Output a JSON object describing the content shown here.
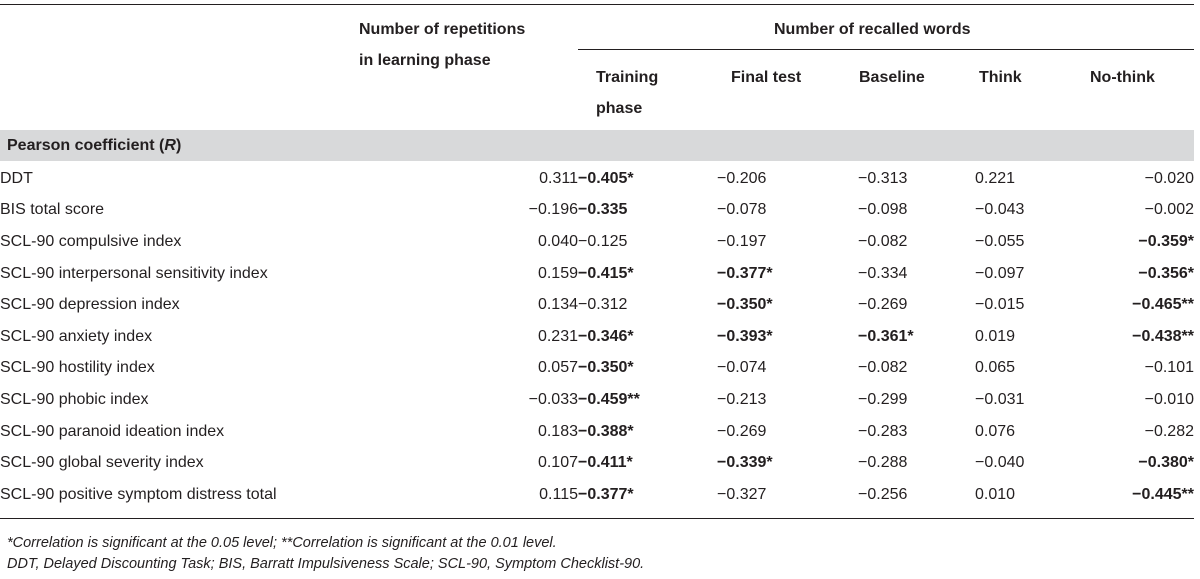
{
  "header": {
    "col_repetitions": [
      "Number of repetitions",
      "in learning phase"
    ],
    "col_recalled_group": "Number of recalled words",
    "subcols": [
      [
        "Training",
        "phase"
      ],
      [
        "Final test"
      ],
      [
        "Baseline"
      ],
      [
        "Think"
      ],
      [
        "No-think"
      ]
    ]
  },
  "section": {
    "label": "Pearson coefficient (",
    "label_italic": "R",
    "label_close": ")"
  },
  "rows": [
    {
      "label": "DDT",
      "cells": [
        {
          "v": "0.311",
          "b": false
        },
        {
          "v": "−0.405*",
          "b": true
        },
        {
          "v": "−0.206",
          "b": false
        },
        {
          "v": "−0.313",
          "b": false
        },
        {
          "v": "0.221",
          "b": false
        },
        {
          "v": "−0.020",
          "b": false
        }
      ]
    },
    {
      "label": "BIS total score",
      "cells": [
        {
          "v": "−0.196",
          "b": false
        },
        {
          "v": "−0.335",
          "b": true
        },
        {
          "v": "−0.078",
          "b": false
        },
        {
          "v": "−0.098",
          "b": false
        },
        {
          "v": "−0.043",
          "b": false
        },
        {
          "v": "−0.002",
          "b": false
        }
      ]
    },
    {
      "label": "SCL-90 compulsive index",
      "cells": [
        {
          "v": "0.040",
          "b": false
        },
        {
          "v": "−0.125",
          "b": false
        },
        {
          "v": "−0.197",
          "b": false
        },
        {
          "v": "−0.082",
          "b": false
        },
        {
          "v": "−0.055",
          "b": false
        },
        {
          "v": "−0.359*",
          "b": true
        }
      ]
    },
    {
      "label": "SCL-90 interpersonal sensitivity index",
      "cells": [
        {
          "v": "0.159",
          "b": false
        },
        {
          "v": "−0.415*",
          "b": true
        },
        {
          "v": "−0.377*",
          "b": true
        },
        {
          "v": "−0.334",
          "b": false
        },
        {
          "v": "−0.097",
          "b": false
        },
        {
          "v": "−0.356*",
          "b": true
        }
      ]
    },
    {
      "label": "SCL-90 depression index",
      "cells": [
        {
          "v": "0.134",
          "b": false
        },
        {
          "v": "−0.312",
          "b": false
        },
        {
          "v": "−0.350*",
          "b": true
        },
        {
          "v": "−0.269",
          "b": false
        },
        {
          "v": "−0.015",
          "b": false
        },
        {
          "v": "−0.465**",
          "b": true
        }
      ]
    },
    {
      "label": "SCL-90 anxiety index",
      "cells": [
        {
          "v": "0.231",
          "b": false
        },
        {
          "v": "−0.346*",
          "b": true
        },
        {
          "v": "−0.393*",
          "b": true
        },
        {
          "v": "−0.361*",
          "b": true
        },
        {
          "v": "0.019",
          "b": false
        },
        {
          "v": "−0.438**",
          "b": true
        }
      ]
    },
    {
      "label": "SCL-90 hostility index",
      "cells": [
        {
          "v": "0.057",
          "b": false
        },
        {
          "v": "−0.350*",
          "b": true
        },
        {
          "v": "−0.074",
          "b": false
        },
        {
          "v": "−0.082",
          "b": false
        },
        {
          "v": "0.065",
          "b": false
        },
        {
          "v": "−0.101",
          "b": false
        }
      ]
    },
    {
      "label": "SCL-90 phobic index",
      "cells": [
        {
          "v": "−0.033",
          "b": false
        },
        {
          "v": "−0.459**",
          "b": true
        },
        {
          "v": "−0.213",
          "b": false
        },
        {
          "v": "−0.299",
          "b": false
        },
        {
          "v": "−0.031",
          "b": false
        },
        {
          "v": "−0.010",
          "b": false
        }
      ]
    },
    {
      "label": "SCL-90 paranoid ideation index",
      "cells": [
        {
          "v": "0.183",
          "b": false
        },
        {
          "v": "−0.388*",
          "b": true
        },
        {
          "v": "−0.269",
          "b": false
        },
        {
          "v": "−0.283",
          "b": false
        },
        {
          "v": "0.076",
          "b": false
        },
        {
          "v": "−0.282",
          "b": false
        }
      ]
    },
    {
      "label": "SCL-90 global severity index",
      "cells": [
        {
          "v": "0.107",
          "b": false
        },
        {
          "v": "−0.411*",
          "b": true
        },
        {
          "v": "−0.339*",
          "b": true
        },
        {
          "v": "−0.288",
          "b": false
        },
        {
          "v": "−0.040",
          "b": false
        },
        {
          "v": "−0.380*",
          "b": true
        }
      ]
    },
    {
      "label": "SCL-90 positive symptom distress total",
      "cells": [
        {
          "v": "0.115",
          "b": false
        },
        {
          "v": "−0.377*",
          "b": true
        },
        {
          "v": "−0.327",
          "b": false
        },
        {
          "v": "−0.256",
          "b": false
        },
        {
          "v": "0.010",
          "b": false
        },
        {
          "v": "−0.445**",
          "b": true
        }
      ]
    }
  ],
  "footnotes": [
    "*Correlation is significant at the 0.05 level; **Correlation is significant at the 0.01 level.",
    "DDT, Delayed Discounting Task; BIS, Barratt Impulsiveness Scale; SCL-90, Symptom Checklist-90."
  ]
}
